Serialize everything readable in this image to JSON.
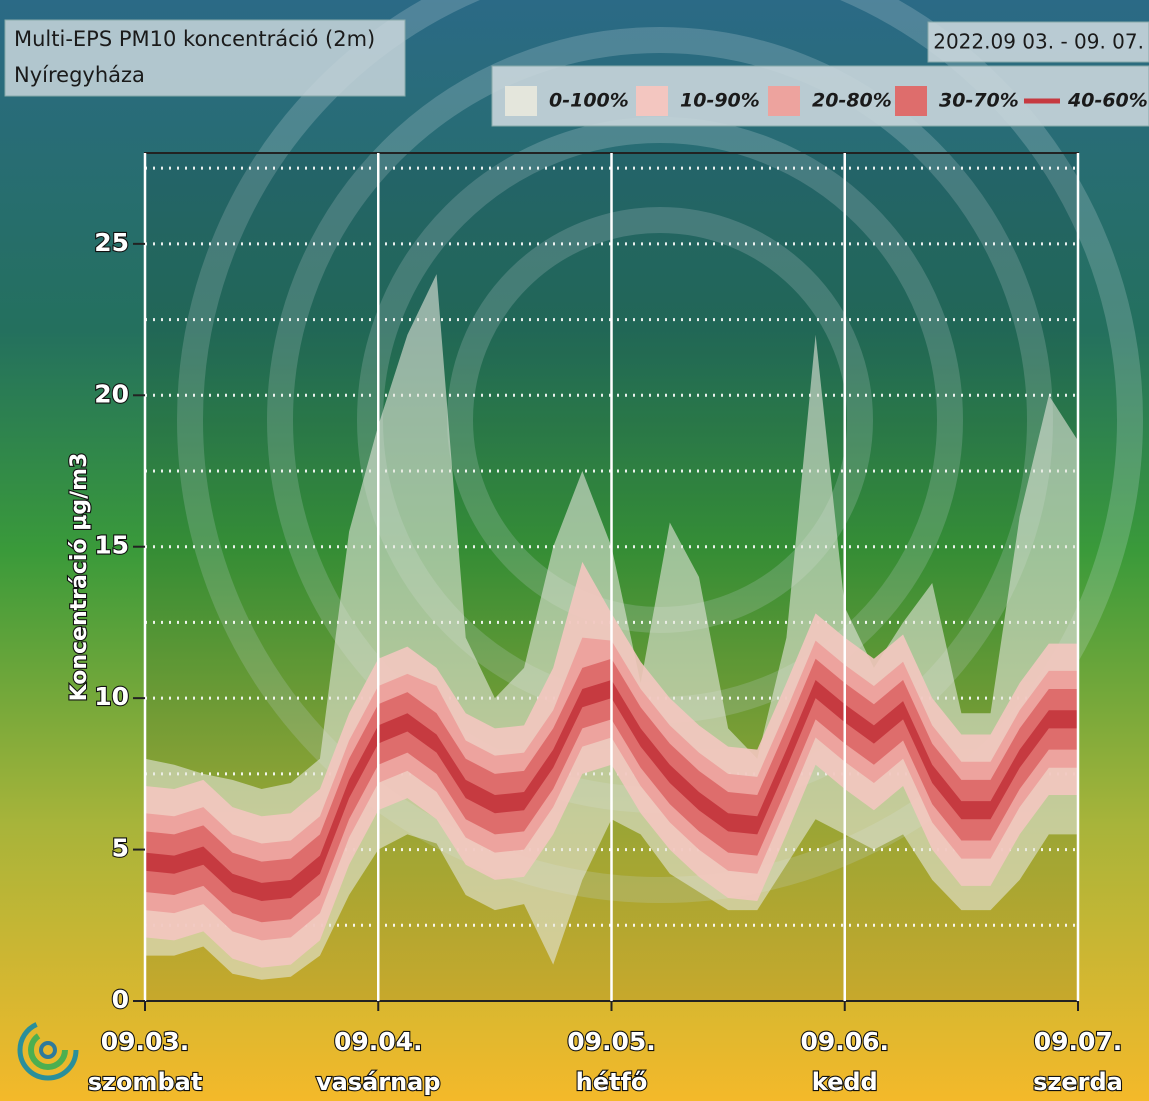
{
  "chart_data": {
    "type": "fan",
    "title": "Multi-EPS PM10 koncentráció (2m)",
    "subtitle": "Nyíregyháza",
    "date_range": "2022.09 03. - 09. 07.",
    "y_label": "Koncentráció µg/m3",
    "x": [
      0,
      3,
      6,
      9,
      12,
      15,
      18,
      21,
      24,
      27,
      30,
      33,
      36,
      39,
      42,
      45,
      48,
      51,
      54,
      57,
      60,
      63,
      66,
      69,
      72,
      75,
      78,
      81,
      84,
      87,
      90,
      93,
      96
    ],
    "xlim": [
      0,
      96
    ],
    "xticks": [
      {
        "value": 0,
        "label": "09.03."
      },
      {
        "value": 24,
        "label": "09.04."
      },
      {
        "value": 48,
        "label": "09.05."
      },
      {
        "value": 72,
        "label": "09.06."
      },
      {
        "value": 96,
        "label": "09.07."
      }
    ],
    "xtick_days": [
      "szombat",
      "vasárnap",
      "hétfő",
      "kedd",
      "szerda"
    ],
    "ylim": [
      0,
      28
    ],
    "yticks": [
      0,
      5,
      10,
      15,
      20,
      25
    ],
    "ygrid": [
      2.5,
      5,
      7.5,
      10,
      12.5,
      15,
      17.5,
      20,
      22.5,
      25,
      27.5
    ],
    "grid": true,
    "series": [
      {
        "name": "0-100%",
        "color": "#e4e6dc",
        "opacity": 0.6,
        "swatch": "rect",
        "lower": [
          1.5,
          1.5,
          1.8,
          0.9,
          0.7,
          0.8,
          1.5,
          3.5,
          5.0,
          5.5,
          5.2,
          3.5,
          3.0,
          3.2,
          1.2,
          4.0,
          6.0,
          5.5,
          4.2,
          3.6,
          3.0,
          3.0,
          4.5,
          6.0,
          5.5,
          5.0,
          5.5,
          4.0,
          3.0,
          3.0,
          4.0,
          5.5,
          5.5
        ],
        "upper": [
          8.0,
          7.8,
          7.5,
          7.3,
          7.0,
          7.2,
          8.0,
          15.5,
          19.0,
          22.0,
          24.0,
          12.0,
          10.0,
          11.0,
          15.0,
          17.5,
          15.0,
          10.5,
          15.8,
          14.0,
          9.0,
          8.0,
          12.0,
          22.0,
          13.0,
          11.0,
          12.5,
          13.8,
          9.5,
          9.5,
          16.0,
          20.0,
          18.5
        ]
      },
      {
        "name": "10-90%",
        "color": "#f3c6c0",
        "opacity": 0.9,
        "swatch": "rect",
        "lower": [
          2.1,
          2.0,
          2.3,
          1.4,
          1.1,
          1.2,
          2.0,
          4.5,
          6.3,
          6.7,
          6.0,
          4.5,
          4.0,
          4.1,
          5.5,
          7.5,
          7.8,
          6.2,
          5.0,
          4.1,
          3.4,
          3.3,
          5.5,
          7.8,
          7.0,
          6.3,
          7.1,
          5.0,
          3.8,
          3.8,
          5.5,
          6.8,
          6.8
        ],
        "upper": [
          7.1,
          7.0,
          7.3,
          6.4,
          6.1,
          6.2,
          7.0,
          9.5,
          11.3,
          11.7,
          11.0,
          9.5,
          9.0,
          9.1,
          11.0,
          14.5,
          12.8,
          11.2,
          10.0,
          9.1,
          8.4,
          8.3,
          10.5,
          12.8,
          12.0,
          11.3,
          12.1,
          10.0,
          8.8,
          8.8,
          10.5,
          11.8,
          11.8
        ]
      },
      {
        "name": "20-80%",
        "color": "#eda39e",
        "opacity": 1,
        "swatch": "rect",
        "lower": [
          3.0,
          2.9,
          3.2,
          2.3,
          2.0,
          2.1,
          2.9,
          5.4,
          7.2,
          7.6,
          6.9,
          5.4,
          4.9,
          5.0,
          6.4,
          8.4,
          8.7,
          7.1,
          5.9,
          5.0,
          4.3,
          4.2,
          6.4,
          8.7,
          7.9,
          7.2,
          8.0,
          5.9,
          4.7,
          4.7,
          6.4,
          7.7,
          7.7
        ],
        "upper": [
          6.2,
          6.1,
          6.4,
          5.5,
          5.2,
          5.3,
          6.1,
          8.6,
          10.4,
          10.8,
          10.4,
          8.6,
          8.1,
          8.2,
          9.6,
          12.0,
          11.9,
          10.3,
          9.1,
          8.2,
          7.5,
          7.4,
          9.6,
          11.9,
          11.1,
          10.4,
          11.2,
          9.1,
          7.9,
          7.9,
          9.6,
          10.9,
          10.9
        ]
      },
      {
        "name": "30-70%",
        "color": "#de6d6c",
        "opacity": 1,
        "swatch": "rect",
        "lower": [
          3.6,
          3.5,
          3.8,
          2.9,
          2.6,
          2.7,
          3.5,
          6.0,
          7.8,
          8.2,
          7.5,
          6.0,
          5.5,
          5.6,
          7.0,
          9.0,
          9.3,
          7.7,
          6.5,
          5.6,
          4.9,
          4.8,
          7.0,
          9.3,
          8.5,
          7.8,
          8.6,
          6.5,
          5.3,
          5.3,
          7.0,
          8.3,
          8.3
        ],
        "upper": [
          5.6,
          5.5,
          5.8,
          4.9,
          4.6,
          4.7,
          5.5,
          8.0,
          9.8,
          10.2,
          9.5,
          8.0,
          7.5,
          7.6,
          9.0,
          11.0,
          11.3,
          9.7,
          8.5,
          7.6,
          6.9,
          6.8,
          9.0,
          11.3,
          10.5,
          9.8,
          10.6,
          8.5,
          7.3,
          7.3,
          9.0,
          10.3,
          10.3
        ]
      },
      {
        "name": "40-60%",
        "color": "#c63a40",
        "opacity": 1,
        "swatch": "line",
        "lower": [
          4.3,
          4.2,
          4.5,
          3.6,
          3.3,
          3.4,
          4.2,
          6.7,
          8.5,
          8.9,
          8.2,
          6.7,
          6.2,
          6.3,
          7.7,
          9.7,
          10.0,
          8.4,
          7.2,
          6.3,
          5.6,
          5.5,
          7.7,
          10.0,
          9.2,
          8.5,
          9.3,
          7.2,
          6.0,
          6.0,
          7.7,
          9.0,
          9.0
        ],
        "upper": [
          4.9,
          4.8,
          5.1,
          4.2,
          3.9,
          4.0,
          4.8,
          7.3,
          9.1,
          9.5,
          8.8,
          7.3,
          6.8,
          6.9,
          8.3,
          10.3,
          10.6,
          9.0,
          7.8,
          6.9,
          6.2,
          6.1,
          8.3,
          10.6,
          9.8,
          9.1,
          9.9,
          7.8,
          6.6,
          6.6,
          8.3,
          9.6,
          9.6
        ]
      }
    ]
  }
}
